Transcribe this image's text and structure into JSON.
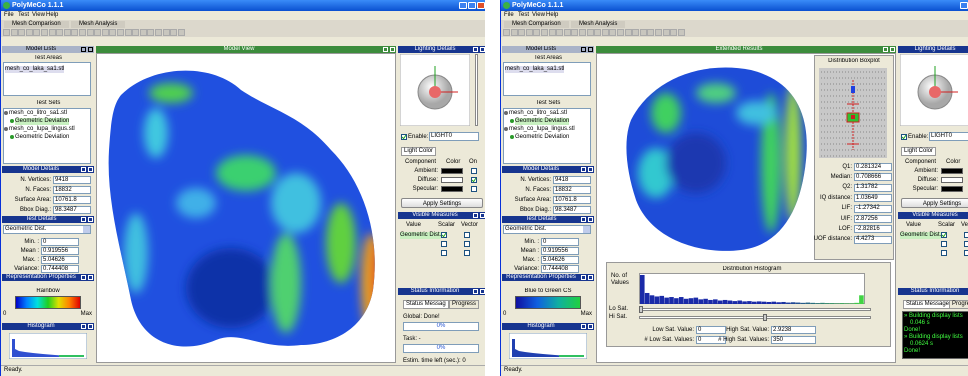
{
  "windows": [
    {
      "title": "PolyMeCo 1.1.1",
      "menu": [
        "File",
        "Test",
        "View",
        "Help"
      ],
      "tabs": [
        "Mesh Comparison",
        "Mesh Analysis"
      ],
      "model_lists": {
        "header": "Model Lists",
        "test_areas": "Test Areas",
        "area_items": [
          "mesh_co_laka_sa1.stl"
        ],
        "test_sets": "Test Sets",
        "set_items": [
          "mesh_co_litro_sa1.stl",
          "Geometric Deviation",
          "mesh_co_lupa_lingus.stl",
          "Geometric Deviation"
        ]
      },
      "center_header": "Model View",
      "model_details": {
        "header": "Model Details",
        "rows": [
          [
            "N. Vertices:",
            "9418"
          ],
          [
            "N. Faces:",
            "18832"
          ],
          [
            "Surface Area:",
            "10761.8"
          ],
          [
            "Bbox Diag.:",
            "98.3487"
          ]
        ]
      },
      "test_details": {
        "header": "Test Details",
        "measure": "Geometric Dist.",
        "rows": [
          [
            "Min. :",
            "0"
          ],
          [
            "Mean :",
            "0.919556"
          ],
          [
            "Max. :",
            "5.04626"
          ],
          [
            "Variance:",
            "0.744408"
          ]
        ]
      },
      "representation": {
        "header": "Representation Properties",
        "scheme": "Rainbow",
        "min": "0",
        "max": "Max"
      },
      "histogram": "Histogram",
      "lighting": {
        "header": "Lighting Details",
        "enable": "Enable:",
        "light": "LIGHT0",
        "tab": "Light Color",
        "columns": [
          "Component",
          "Color",
          "On"
        ],
        "rows": [
          "Ambient:",
          "Diffuse:",
          "Specular:"
        ],
        "button": "Apply Settings"
      },
      "visible_measures": {
        "header": "Visible Measures",
        "columns": [
          "Value",
          "Scalar",
          "Vector"
        ],
        "rows": [
          "Geometric Dist."
        ]
      },
      "status": {
        "header": "Status Information",
        "tabs": [
          "Status Messag",
          "Progress"
        ],
        "global": "Global: Done!",
        "global_progress": "0%",
        "task": "Task: -",
        "task_progress": "0%",
        "time_left": "Estim. time left (sec.): 0"
      },
      "statusbar": "Ready."
    },
    {
      "title": "PolyMeCo 1.1.1",
      "menu": [
        "File",
        "Test",
        "View",
        "Help"
      ],
      "tabs": [
        "Mesh Comparison",
        "Mesh Analysis"
      ],
      "model_lists": {
        "header": "Model Lists",
        "test_areas": "Test Areas",
        "area_items": [
          "mesh_co_laka_sa1.stl"
        ],
        "test_sets": "Test Sets",
        "set_items": [
          "mesh_co_litro_sa1.stl",
          "Geometric Deviation",
          "mesh_co_lupa_lingus.stl",
          "Geometric Deviation"
        ]
      },
      "center_header": "Extended Results",
      "model_details": {
        "header": "Model Details",
        "rows": [
          [
            "N. Vertices:",
            "9418"
          ],
          [
            "N. Faces:",
            "18832"
          ],
          [
            "Surface Area:",
            "10761.8"
          ],
          [
            "Bbox Diag.:",
            "98.3487"
          ]
        ]
      },
      "test_details": {
        "header": "Test Details",
        "measure": "Geometric Dist.",
        "rows": [
          [
            "Min. :",
            "0"
          ],
          [
            "Mean :",
            "0.919556"
          ],
          [
            "Max. :",
            "5.04626"
          ],
          [
            "Variance:",
            "0.744408"
          ]
        ]
      },
      "representation": {
        "header": "Representation Properties",
        "scheme": "Blue to Green CS",
        "min": "0",
        "max": "Max"
      },
      "histogram": "Histogram",
      "lighting": {
        "header": "Lighting Details",
        "enable": "Enable:",
        "light": "LIGHT0",
        "tab": "Light Color",
        "columns": [
          "Component",
          "Color",
          "On"
        ],
        "rows": [
          "Ambient:",
          "Diffuse:",
          "Specular:"
        ],
        "button": "Apply Settings"
      },
      "visible_measures": {
        "header": "Visible Measures",
        "columns": [
          "Value",
          "Scalar",
          "Vector"
        ],
        "rows": [
          "Geometric Dist."
        ]
      },
      "status": {
        "header": "Status Information",
        "tabs": [
          "Status Messages",
          "Progress"
        ],
        "messages": [
          "» Building display lists",
          "0.046 s",
          "Done!",
          "» Building display lists",
          "0.0624 s",
          "Done!"
        ]
      },
      "extended": {
        "boxplot": {
          "title": "Distribution Boxplot",
          "stats": [
            [
              "Q1:",
              "0.281324"
            ],
            [
              "Median:",
              "0.708666"
            ],
            [
              "Q2:",
              "1.31782"
            ],
            [
              "IQ distance:",
              "1.03649"
            ],
            [
              "LIF:",
              "-1.27342"
            ],
            [
              "UIF:",
              "2.87256"
            ],
            [
              "LOF:",
              "-2.82816"
            ],
            [
              "UOF distance:",
              "4.4273"
            ]
          ]
        },
        "histogram": {
          "title": "Distribution Histogram",
          "ylabel": [
            "No. of",
            "Values"
          ],
          "counts": [
            100,
            38,
            30,
            26,
            28,
            22,
            24,
            20,
            24,
            18,
            20,
            22,
            16,
            18,
            14,
            16,
            12,
            14,
            12,
            10,
            12,
            9,
            10,
            8,
            9,
            8,
            7,
            8,
            6,
            7,
            5,
            6,
            5,
            4,
            5,
            4,
            3,
            4,
            3,
            3,
            2,
            3,
            2,
            2,
            4,
            30
          ],
          "lo_sat": "Lo Sat.",
          "hi_sat": "Hi Sat.",
          "fields": [
            [
              "Low Sat. Value:",
              "0"
            ],
            [
              "High Sat. Value:",
              "2.9238"
            ],
            [
              "# Low Sat. Values:",
              "0"
            ],
            [
              "# High Sat. Values:",
              "350"
            ]
          ]
        }
      },
      "statusbar": "Ready."
    }
  ]
}
